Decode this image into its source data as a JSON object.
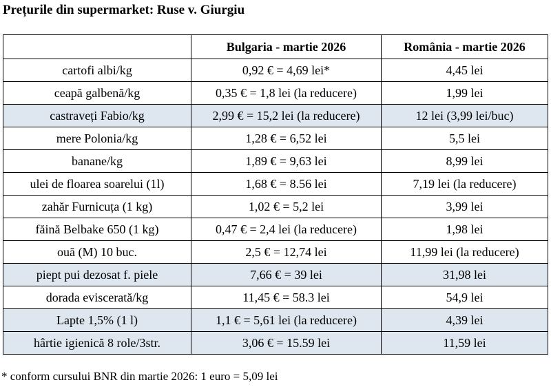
{
  "title": "Prețurile din supermarket: Ruse v. Giurgiu",
  "table": {
    "headers": [
      "",
      "Bulgaria - martie 2026",
      "România - martie 2026"
    ],
    "rows": [
      {
        "product": "cartofi albi/kg",
        "bulgaria": "0,92 € = 4,69 lei*",
        "romania": "4,45 lei",
        "shaded": false
      },
      {
        "product": "ceapă galbenă/kg",
        "bulgaria": "0,35 € = 1,8 lei (la reducere)",
        "romania": "1,99 lei",
        "shaded": false
      },
      {
        "product": "castraveți Fabio/kg",
        "bulgaria": "2,99 € = 15,2 lei (la reducere)",
        "romania": "12 lei (3,99 lei/buc)",
        "shaded": true
      },
      {
        "product": "mere Polonia/kg",
        "bulgaria": "1,28 € = 6,52 lei",
        "romania": "5,5 lei",
        "shaded": false
      },
      {
        "product": "banane/kg",
        "bulgaria": "1,89 € = 9,63 lei",
        "romania": "8,99 lei",
        "shaded": false
      },
      {
        "product": "ulei de floarea soarelui (1l)",
        "bulgaria": "1,68 € = 8.56 lei",
        "romania": "7,19 lei (la reducere)",
        "shaded": false
      },
      {
        "product": "zahăr Furnicuța (1 kg)",
        "bulgaria": "1,02 € = 5,2 lei",
        "romania": "3,99 lei",
        "shaded": false
      },
      {
        "product": "făină Belbake 650 (1 kg)",
        "bulgaria": "0,47 € = 2,4 lei (la reducere)",
        "romania": "1,98 lei",
        "shaded": false
      },
      {
        "product": "ouă (M) 10 buc.",
        "bulgaria": "2,5 € = 12,74 lei",
        "romania": "11,99 lei (la reducere)",
        "shaded": false
      },
      {
        "product": "piept pui dezosat f. piele",
        "bulgaria": "7,66 € = 39 lei",
        "romania": "31,98 lei",
        "shaded": true
      },
      {
        "product": "dorada eviscerată/kg",
        "bulgaria": "11,45 € = 58.3 lei",
        "romania": "54,9 lei",
        "shaded": false
      },
      {
        "product": "Lapte 1,5% (1 l)",
        "bulgaria": "1,1 € = 5,61 lei (la reducere)",
        "romania": "4,39 lei",
        "shaded": true
      },
      {
        "product": "hârtie igienică 8 role/3str.",
        "bulgaria": "3,06 € = 15.59 lei",
        "romania": "11,59 lei",
        "shaded": true
      }
    ]
  },
  "footnote": "* conform cursului BNR din martie 2026: 1 euro = 5,09 lei"
}
